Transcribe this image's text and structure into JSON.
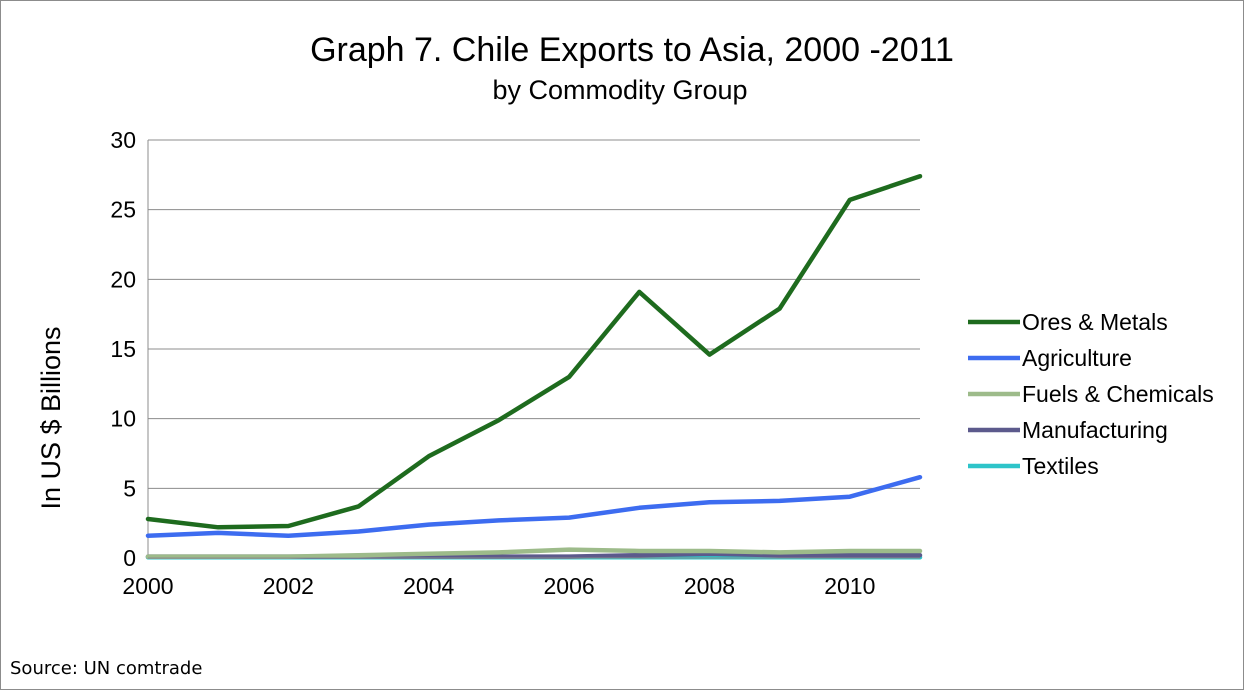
{
  "chart_data": {
    "type": "line",
    "title": "Graph 7. Chile Exports to Asia, 2000    -2011",
    "subtitle": "by Commodity Group",
    "xlabel": "",
    "ylabel": "In US $ Billions",
    "x": [
      2000,
      2001,
      2002,
      2003,
      2004,
      2005,
      2006,
      2007,
      2008,
      2009,
      2010,
      2011
    ],
    "xticks": [
      "2000",
      "2002",
      "2004",
      "2006",
      "2008",
      "2010"
    ],
    "yticks": [
      "0",
      "5",
      "10",
      "15",
      "20",
      "25",
      "30"
    ],
    "ylim": [
      0,
      30
    ],
    "xlim": [
      2000,
      2011
    ],
    "grid": "horizontal",
    "legend_position": "right",
    "series": [
      {
        "name": "Ores & Metals",
        "color": "#1e6b1e",
        "values": [
          2.8,
          2.2,
          2.3,
          3.7,
          7.3,
          9.9,
          13.0,
          19.1,
          14.6,
          17.9,
          25.7,
          27.4
        ]
      },
      {
        "name": "Agriculture",
        "color": "#3d6cf0",
        "values": [
          1.6,
          1.8,
          1.6,
          1.9,
          2.4,
          2.7,
          2.9,
          3.6,
          4.0,
          4.1,
          4.4,
          5.8
        ]
      },
      {
        "name": "Fuels & Chemicals",
        "color": "#9dbb8a",
        "values": [
          0.1,
          0.1,
          0.1,
          0.2,
          0.3,
          0.4,
          0.6,
          0.5,
          0.5,
          0.4,
          0.5,
          0.5
        ]
      },
      {
        "name": "Manufacturing",
        "color": "#5c5a8c",
        "values": [
          0.1,
          0.1,
          0.1,
          0.1,
          0.1,
          0.1,
          0.1,
          0.2,
          0.3,
          0.2,
          0.2,
          0.2
        ]
      },
      {
        "name": "Textiles",
        "color": "#2ec4c9",
        "values": [
          0.05,
          0.05,
          0.05,
          0.05,
          0.05,
          0.05,
          0.05,
          0.05,
          0.05,
          0.05,
          0.05,
          0.05
        ]
      }
    ]
  },
  "source_note": "Source: UN comtrade"
}
